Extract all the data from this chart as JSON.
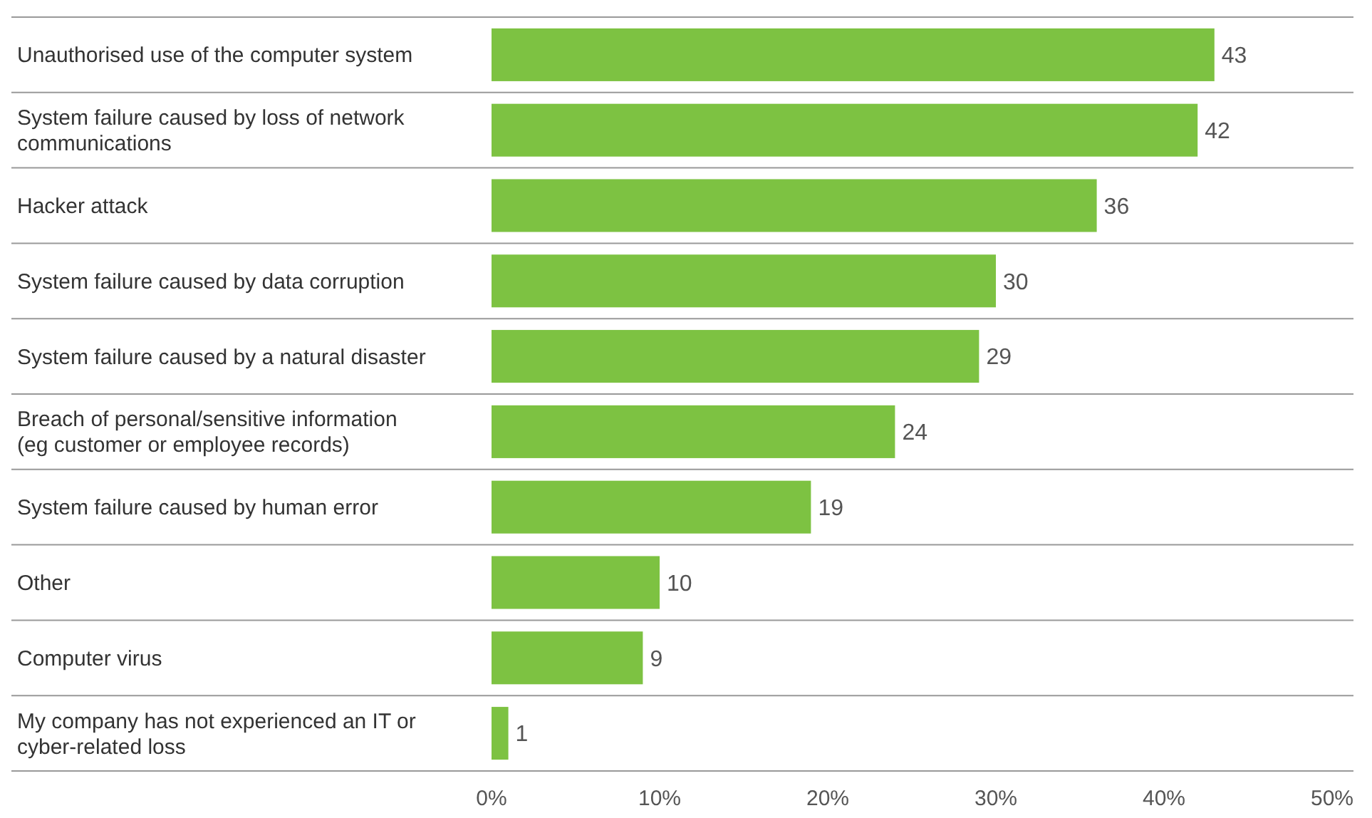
{
  "chart_data": {
    "type": "bar",
    "orientation": "horizontal",
    "categories": [
      "Unauthorised use of the computer system",
      "System failure caused by loss of network communications",
      "Hacker attack",
      "System failure caused by data corruption",
      "System failure caused by a natural disaster",
      "Breach of personal/sensitive information (eg customer or employee records)",
      "System failure caused by human error",
      "Other",
      "Computer virus",
      "My company has not experienced an IT or cyber-related loss"
    ],
    "values": [
      43,
      42,
      36,
      30,
      29,
      24,
      19,
      10,
      9,
      1
    ],
    "color": "#7dc242",
    "data_labels": true,
    "grid": "y",
    "xlim": [
      0,
      50
    ],
    "xticks": [
      {
        "value": 0,
        "label": "0%"
      },
      {
        "value": 10,
        "label": "10%"
      },
      {
        "value": 20,
        "label": "20%"
      },
      {
        "value": 30,
        "label": "30%"
      },
      {
        "value": 40,
        "label": "40%"
      },
      {
        "value": 50,
        "label": "50%"
      }
    ]
  }
}
